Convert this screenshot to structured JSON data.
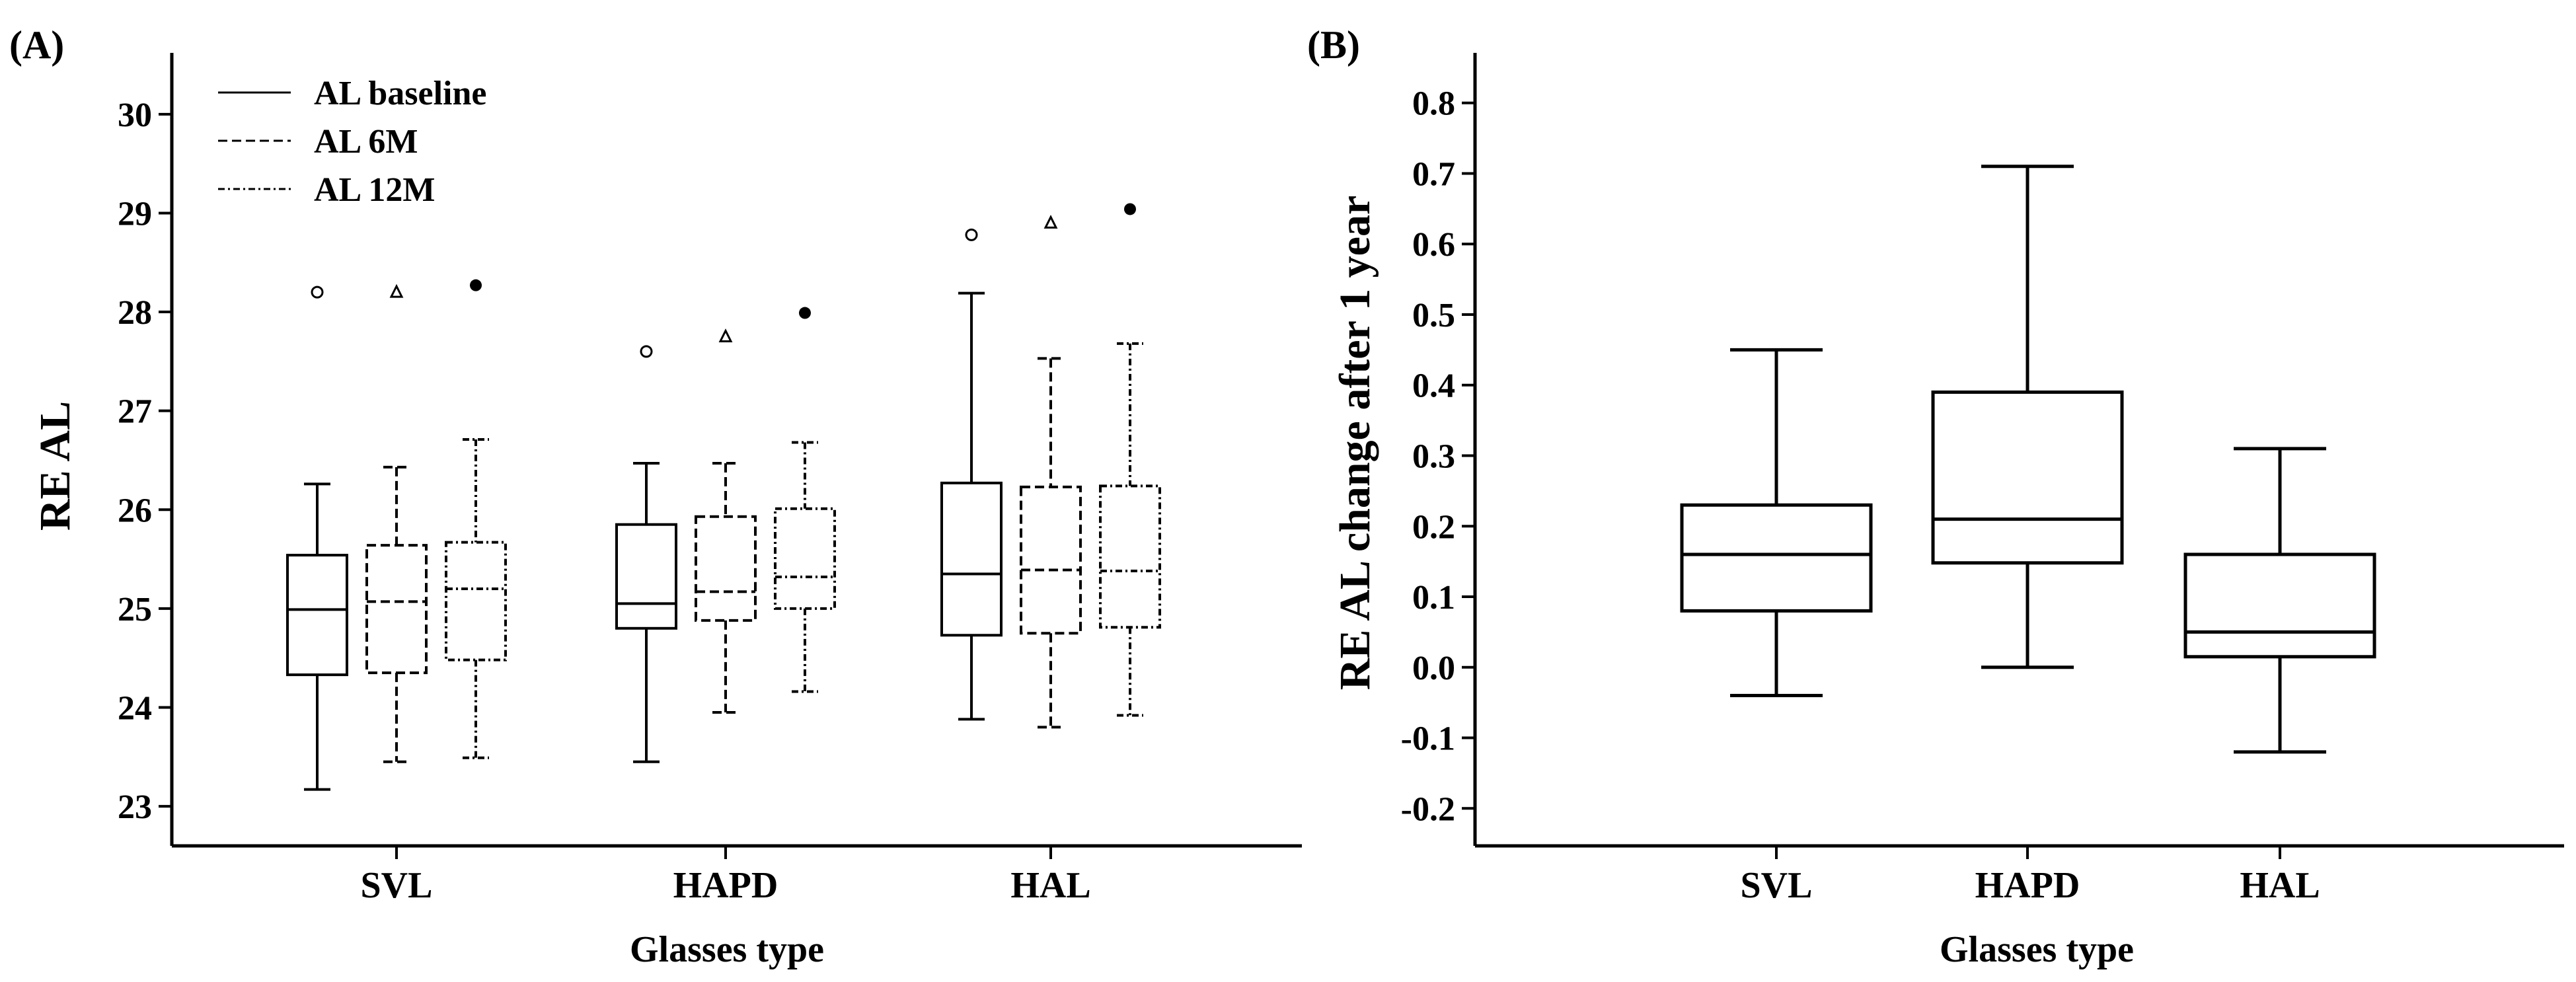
{
  "chart_data": [
    {
      "type": "box",
      "panel_label": "(A)",
      "title": "",
      "xlabel": "Glasses  type",
      "ylabel": "RE  AL",
      "ylim": [
        22.8,
        30.4
      ],
      "yticks": [
        23,
        24,
        25,
        26,
        27,
        28,
        29,
        30
      ],
      "categories": [
        "SVL",
        "HAPD",
        "HAL"
      ],
      "legend": {
        "placement": "top-left",
        "entries": [
          "AL baseline",
          "AL 6M",
          "AL 12M"
        ]
      },
      "series": [
        {
          "name": "AL baseline",
          "line_style": "solid",
          "outlier_marker": "open-circle",
          "boxes": [
            {
              "category": "SVL",
              "whislo": 23.17,
              "q1": 24.33,
              "median": 24.99,
              "q3": 25.54,
              "whishi": 26.26,
              "outliers": [
                28.2
              ]
            },
            {
              "category": "HAPD",
              "whislo": 23.45,
              "q1": 24.8,
              "median": 25.05,
              "q3": 25.85,
              "whishi": 26.47,
              "outliers": [
                27.6
              ]
            },
            {
              "category": "HAL",
              "whislo": 23.88,
              "q1": 24.73,
              "median": 25.35,
              "q3": 26.27,
              "whishi": 28.19,
              "outliers": [
                28.78
              ]
            }
          ]
        },
        {
          "name": "AL 6M",
          "line_style": "dashed",
          "outlier_marker": "open-triangle",
          "boxes": [
            {
              "category": "SVL",
              "whislo": 23.45,
              "q1": 24.35,
              "median": 25.07,
              "q3": 25.64,
              "whishi": 26.43,
              "outliers": [
                28.2
              ]
            },
            {
              "category": "HAPD",
              "whislo": 23.95,
              "q1": 24.88,
              "median": 25.17,
              "q3": 25.93,
              "whishi": 26.47,
              "outliers": [
                27.75
              ]
            },
            {
              "category": "HAL",
              "whislo": 23.8,
              "q1": 24.75,
              "median": 25.39,
              "q3": 26.23,
              "whishi": 27.53,
              "outliers": [
                28.9
              ]
            }
          ]
        },
        {
          "name": "AL 12M",
          "line_style": "dash-dot",
          "outlier_marker": "filled-circle",
          "boxes": [
            {
              "category": "SVL",
              "whislo": 23.49,
              "q1": 24.48,
              "median": 25.2,
              "q3": 25.67,
              "whishi": 26.71,
              "outliers": [
                28.27
              ]
            },
            {
              "category": "HAPD",
              "whislo": 24.16,
              "q1": 25.0,
              "median": 25.32,
              "q3": 26.01,
              "whishi": 26.68,
              "outliers": [
                27.99
              ]
            },
            {
              "category": "HAL",
              "whislo": 23.92,
              "q1": 24.81,
              "median": 25.38,
              "q3": 26.24,
              "whishi": 27.68,
              "outliers": [
                29.04
              ]
            }
          ]
        }
      ]
    },
    {
      "type": "box",
      "panel_label": "(B)",
      "title": "",
      "xlabel": "Glasses type",
      "ylabel": "RE  AL change after 1 year",
      "ylim": [
        -0.225,
        0.84
      ],
      "yticks": [
        "-0.2",
        "-0.1",
        "0.0",
        "0.1",
        "0.2",
        "0.3",
        "0.4",
        "0.5",
        "0.6",
        "0.7",
        "0.8"
      ],
      "categories": [
        "SVL",
        "HAPD",
        "HAL"
      ],
      "boxes": [
        {
          "category": "SVL",
          "whislo": -0.04,
          "q1": 0.08,
          "median": 0.16,
          "q3": 0.23,
          "whishi": 0.45
        },
        {
          "category": "HAPD",
          "whislo": 0.0,
          "q1": 0.148,
          "median": 0.21,
          "q3": 0.39,
          "whishi": 0.71
        },
        {
          "category": "HAL",
          "whislo": -0.12,
          "q1": 0.015,
          "median": 0.05,
          "q3": 0.16,
          "whishi": 0.31
        }
      ]
    }
  ]
}
